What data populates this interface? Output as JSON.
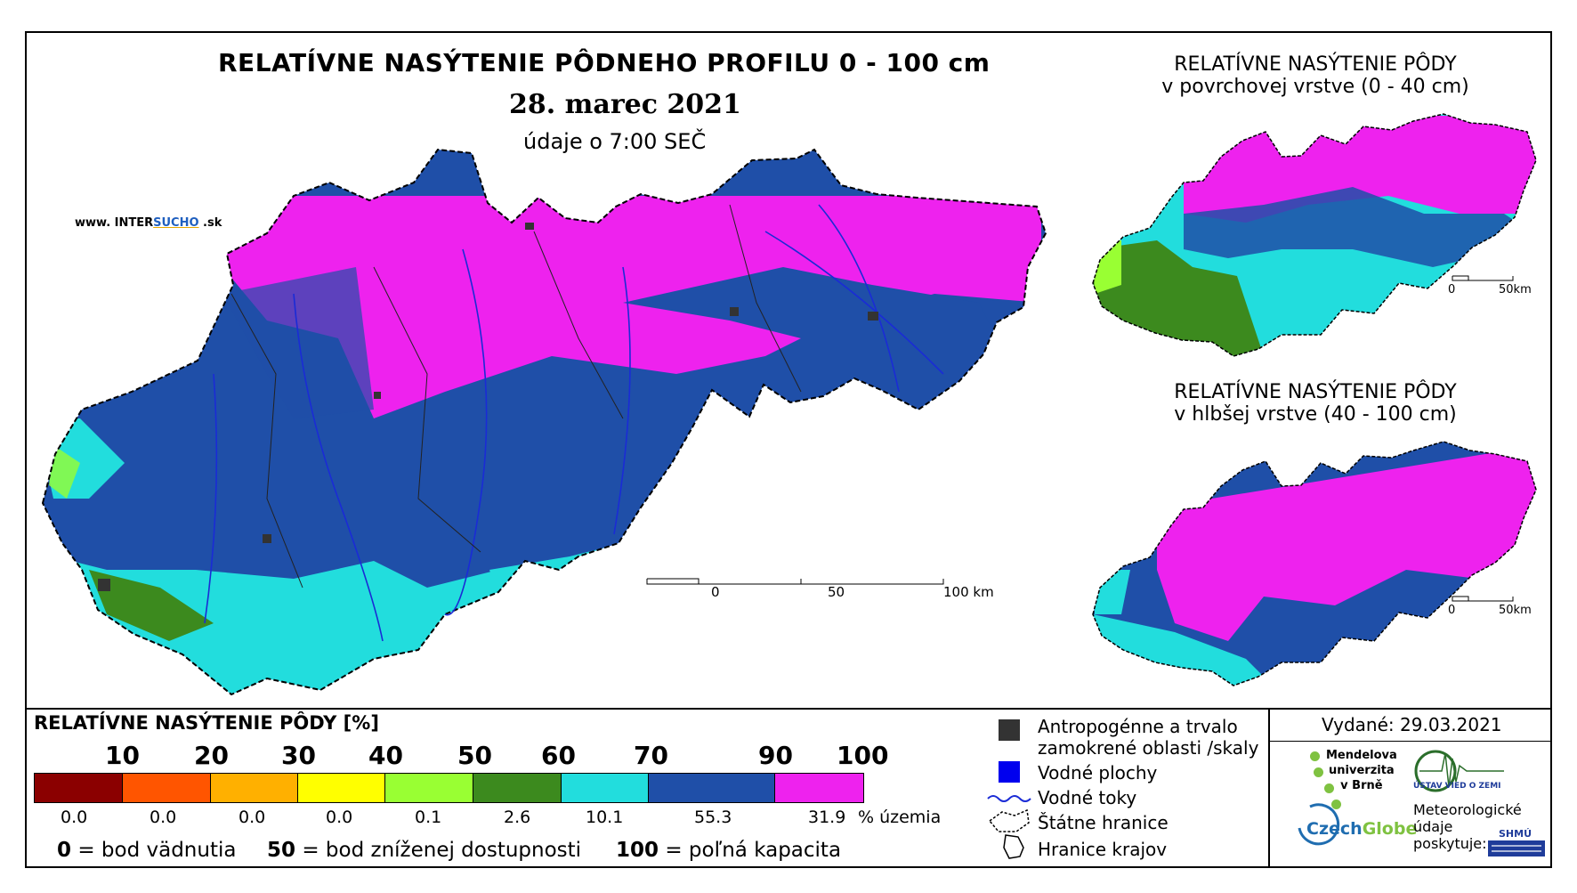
{
  "title": "RELATÍVNE NASÝTENIE PÔDNEHO PROFILU 0 - 100 cm",
  "date": "28. marec 2021",
  "time_note": "údaje o 7:00 SEČ",
  "website": {
    "prefix": "www. INTER",
    "brand": "SUCHO",
    "suffix": " .sk"
  },
  "main_scalebar": {
    "ticks": [
      "0",
      "50",
      "100 km"
    ]
  },
  "inset_top": {
    "title_line1": "RELATÍVNE NASÝTENIE PÔDY",
    "title_line2": "v povrchovej vrstve (0 - 40 cm)",
    "scale_ticks": [
      "0",
      "50km"
    ]
  },
  "inset_bottom": {
    "title_line1": "RELATÍVNE NASÝTENIE PÔDY",
    "title_line2": "v hlbšej vrstve (40 - 100 cm)",
    "scale_ticks": [
      "0",
      "50km"
    ]
  },
  "legend": {
    "title": "RELATÍVNE NASÝTENIE PÔDY [%]",
    "thresholds": [
      "10",
      "20",
      "30",
      "40",
      "50",
      "60",
      "70",
      "90",
      "100"
    ],
    "classes": [
      {
        "color": "#8b0000",
        "share": "0.0"
      },
      {
        "color": "#ff5500",
        "share": "0.0"
      },
      {
        "color": "#ffb000",
        "share": "0.0"
      },
      {
        "color": "#ffff00",
        "share": "0.0"
      },
      {
        "color": "#99ff33",
        "share": "0.1"
      },
      {
        "color": "#3c8a1e",
        "share": "2.6"
      },
      {
        "color": "#22dddd",
        "share": "10.1"
      },
      {
        "color": "#1f4fa8",
        "share": "55.3"
      },
      {
        "color": "#ee22ee",
        "share": "31.9"
      }
    ],
    "share_unit": "% územia",
    "notes": [
      {
        "value": "0",
        "text": " = bod vädnutia"
      },
      {
        "value": "50",
        "text": " = bod zníženej dostupnosti"
      },
      {
        "value": "100",
        "text": " = poľná kapacita"
      }
    ]
  },
  "map_legend": [
    {
      "icon": "anthropogenic-square",
      "label_line1": "Antropogénne a trvalo",
      "label_line2": "zamokrené oblasti /skaly"
    },
    {
      "icon": "water-square",
      "label_line1": "Vodné plochy"
    },
    {
      "icon": "river-line",
      "label_line1": "Vodné toky"
    },
    {
      "icon": "state-border-outline",
      "label_line1": "Štátne hranice"
    },
    {
      "icon": "region-border-outline",
      "label_line1": "Hranice krajov"
    }
  ],
  "issued": "Vydané: 29.03.2021",
  "logos": {
    "mendel_line1": "Mendelova",
    "mendel_line2": "univerzita",
    "mendel_line3": "v Brně",
    "czechglobe_a": "Czech",
    "czechglobe_b": "Globe",
    "ustav": "ÚSTAV VIED O ZEMI",
    "meteo_line1": "Meteorologické",
    "meteo_line2": "údaje",
    "meteo_line3": "poskytuje:",
    "shmu": "SHMÚ"
  },
  "colors": {
    "magenta": "#ee22ee",
    "blue": "#1f4fa8",
    "cyan": "#22dddd",
    "green": "#3c8a1e",
    "lightgreen": "#99ff33",
    "river": "#1a2bd6"
  }
}
